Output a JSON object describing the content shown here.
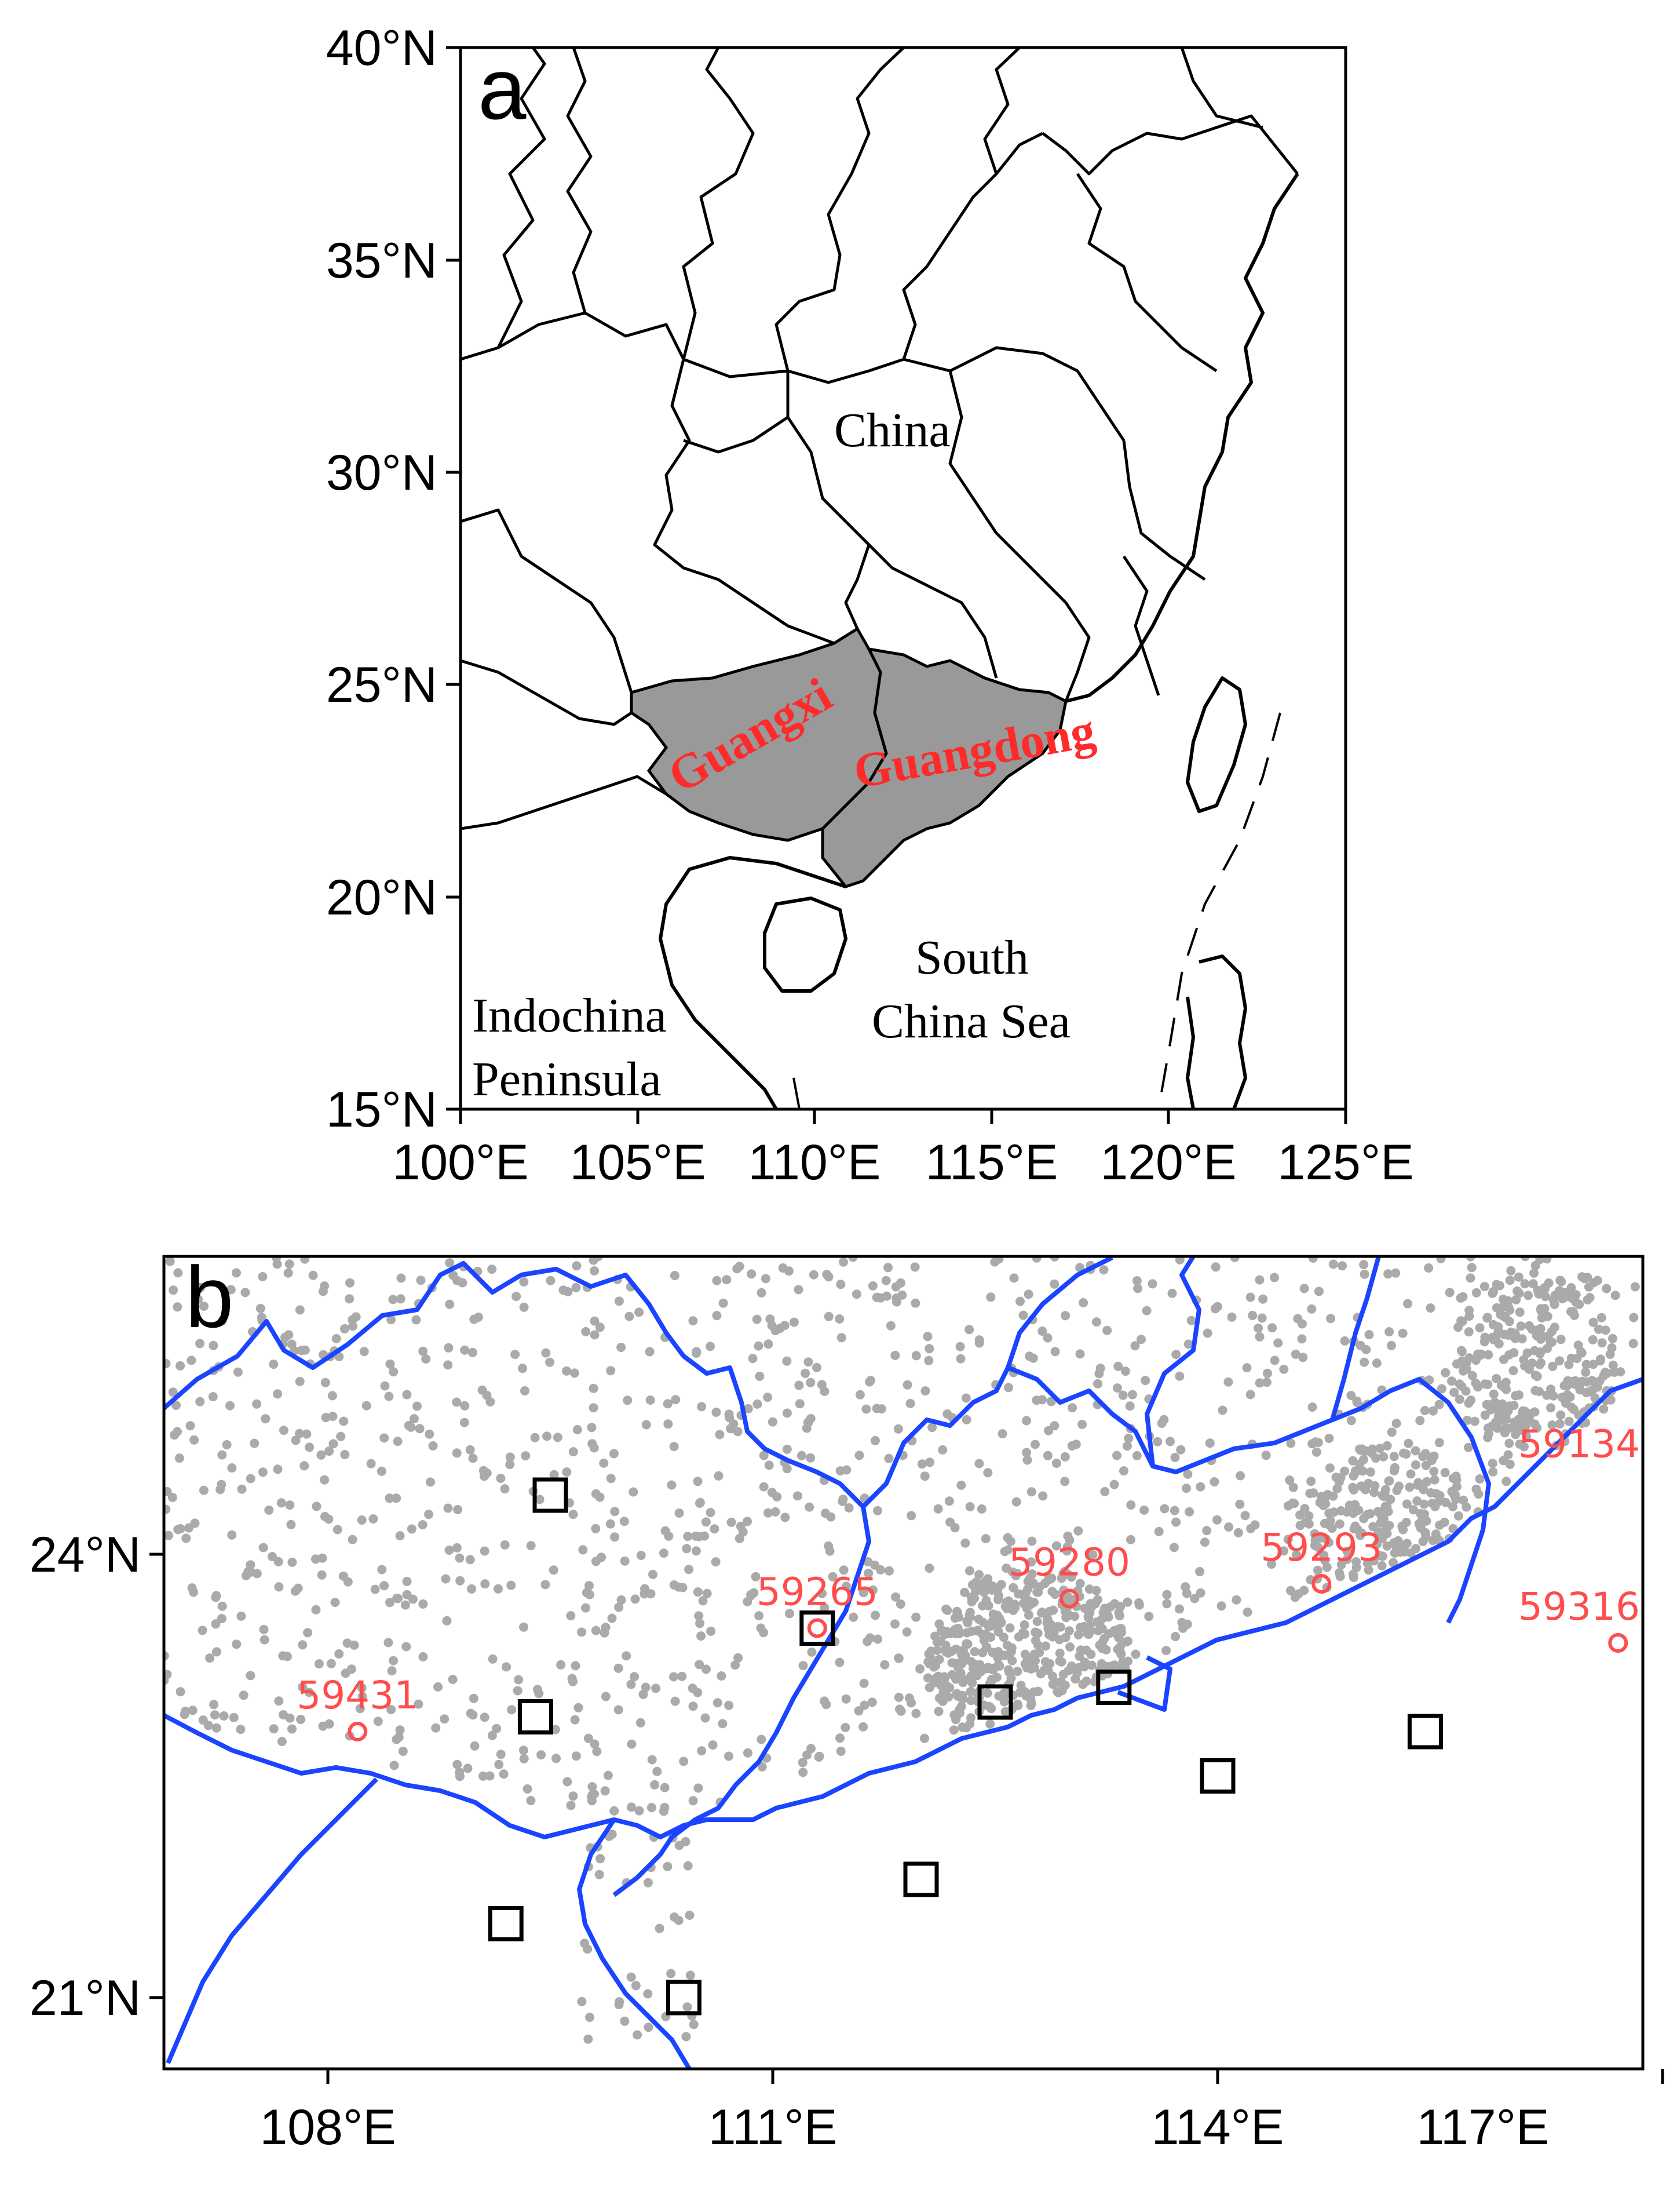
{
  "panel_a": {
    "label": "a",
    "lat_ticks": [
      "40°N",
      "35°N",
      "30°N",
      "25°N",
      "20°N",
      "15°N"
    ],
    "lon_ticks": [
      "100°E",
      "105°E",
      "110°E",
      "115°E",
      "120°E",
      "125°E"
    ],
    "places": {
      "china": "China",
      "south_china_sea_1": "South",
      "south_china_sea_2": "China Sea",
      "indochina_1": "Indochina",
      "indochina_2": "Peninsula"
    },
    "provinces": {
      "guangxi": "Guangxi",
      "guangdong": "Guangdong"
    },
    "highlight_color": "#999999",
    "label_color": "#ff2a2a"
  },
  "panel_b": {
    "label": "b",
    "lat_ticks": [
      "24°N",
      "21°N"
    ],
    "lon_ticks": [
      "108°E",
      "111°E",
      "114°E",
      "117°E"
    ],
    "border_color": "#1a44ff",
    "station_color": "#aaaaaa",
    "labelled_stations": [
      {
        "id": "59134",
        "lon": 118.0,
        "lat": 24.5
      },
      {
        "id": "59265",
        "lon": 111.3,
        "lat": 23.5
      },
      {
        "id": "59280",
        "lon": 113.0,
        "lat": 23.7
      },
      {
        "id": "59293",
        "lon": 114.7,
        "lat": 23.8
      },
      {
        "id": "59316",
        "lon": 116.7,
        "lat": 23.4
      },
      {
        "id": "59431",
        "lon": 108.2,
        "lat": 22.8
      }
    ],
    "square_sites": [
      {
        "lon": 109.5,
        "lat": 24.4
      },
      {
        "lon": 111.3,
        "lat": 23.5
      },
      {
        "lon": 109.4,
        "lat": 22.9
      },
      {
        "lon": 112.5,
        "lat": 23.0
      },
      {
        "lon": 113.3,
        "lat": 23.1
      },
      {
        "lon": 114.0,
        "lat": 22.5
      },
      {
        "lon": 115.4,
        "lat": 22.8
      },
      {
        "lon": 112.0,
        "lat": 21.8
      },
      {
        "lon": 109.2,
        "lat": 21.5
      },
      {
        "lon": 110.4,
        "lat": 21.0
      }
    ]
  }
}
